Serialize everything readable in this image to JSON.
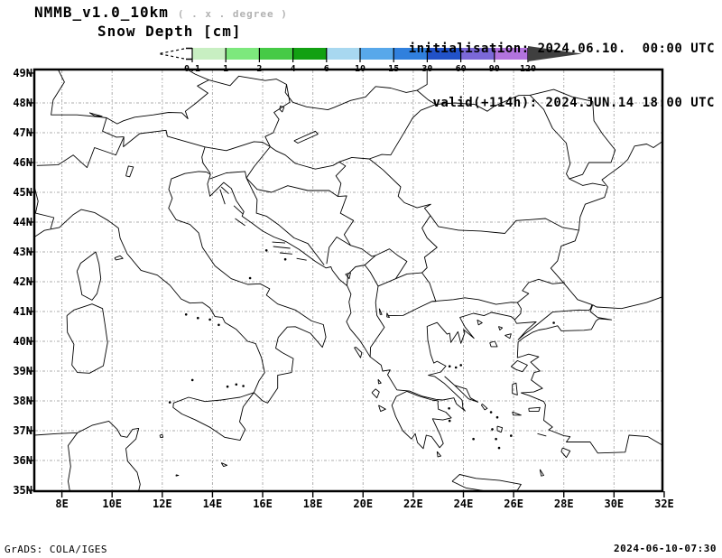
{
  "header": {
    "model_title": "NMMB_v1.0_10km",
    "resolution_note": "( . x . degree )",
    "field_title": "Snow Depth [cm]",
    "init_line": "initialisation: 2024.06.10.  00:00 UTC",
    "valid_line": "valid(+114h): 2024.JUN.14 18:00 UTC"
  },
  "colorbar": {
    "boundary_labels": [
      "0.1",
      "1",
      "2",
      "4",
      "6",
      "10",
      "15",
      "30",
      "60",
      "90",
      "120"
    ],
    "segment_colors": [
      "#c8efc2",
      "#7de87d",
      "#46ca46",
      "#12a012",
      "#a8d8f0",
      "#58a8ea",
      "#3080dd",
      "#2152c8",
      "#7b68d8",
      "#b273de"
    ],
    "overflow_color": "#3f3f3f",
    "underflow_note": "dashed-open-end"
  },
  "map": {
    "lat_tick_labels": [
      "49N",
      "48N",
      "47N",
      "46N",
      "45N",
      "44N",
      "43N",
      "42N",
      "41N",
      "40N",
      "39N",
      "38N",
      "37N",
      "36N",
      "35N"
    ],
    "lon_tick_labels": [
      "8E",
      "10E",
      "12E",
      "14E",
      "16E",
      "18E",
      "20E",
      "22E",
      "24E",
      "26E",
      "28E",
      "30E",
      "32E"
    ],
    "grid_color": "#aeaeae",
    "coast_color": "#000000"
  },
  "footer": {
    "credit": "GrADS: COLA/IGES",
    "timestamp": "2024-06-10-07:30"
  }
}
